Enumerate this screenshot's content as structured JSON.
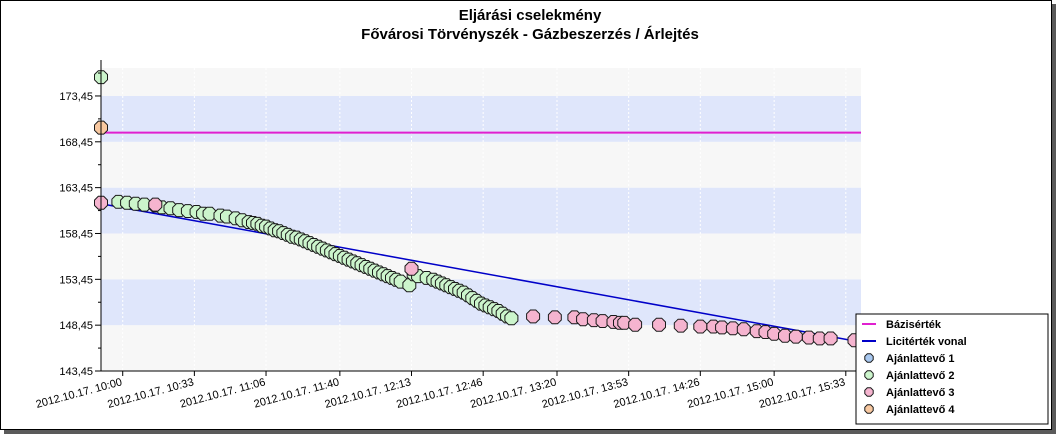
{
  "chart_data": {
    "type": "scatter",
    "title": "Eljárási cselekmény",
    "subtitle": "Fővárosi Törvényszék - Gázbeszerzés / Árlejtés",
    "xlabel": "",
    "ylabel": "",
    "y_ticks": [
      "143,45",
      "148,45",
      "153,45",
      "158,45",
      "163,45",
      "168,45",
      "173,45"
    ],
    "y_tick_values": [
      143.45,
      148.45,
      153.45,
      158.45,
      163.45,
      168.45,
      173.45
    ],
    "ylim": [
      143.45,
      176.5
    ],
    "x_ticks": [
      "2012.10.17. 10:00",
      "2012.10.17. 10:33",
      "2012.10.17. 11:06",
      "2012.10.17. 11:40",
      "2012.10.17. 12:13",
      "2012.10.17. 12:46",
      "2012.10.17. 13:20",
      "2012.10.17. 13:53",
      "2012.10.17. 14:26",
      "2012.10.17. 15:00",
      "2012.10.17. 15:33"
    ],
    "x_tick_minutes": [
      0,
      33,
      66,
      100,
      133,
      166,
      200,
      233,
      266,
      300,
      333
    ],
    "xlim_minutes": [
      -10,
      340
    ],
    "band_colors": [
      "#f7f7f7",
      "#dfe6fb"
    ],
    "grid": true,
    "legend_position": "bottom-right",
    "series": [
      {
        "name": "Bázisérték",
        "kind": "hline",
        "value": 169.45,
        "color": "#e020d0"
      },
      {
        "name": "Licitérték vonal",
        "kind": "line",
        "color": "#0000c8",
        "x": [
          -10,
          340
        ],
        "y": [
          161.7,
          146.6
        ]
      },
      {
        "name": "Ajánlattevő 1",
        "kind": "scatter",
        "color": "#a8c8f0",
        "x": [],
        "y": []
      },
      {
        "name": "Ajánlattevő 2",
        "kind": "scatter",
        "color": "#ccf5cc",
        "x": [
          -10,
          -2,
          2,
          6,
          10,
          15,
          18,
          22,
          26,
          30,
          34,
          37,
          40,
          45,
          48,
          52,
          55,
          58,
          60,
          62,
          64,
          66,
          68,
          70,
          72,
          74,
          76,
          78,
          80,
          82,
          84,
          86,
          88,
          90,
          92,
          94,
          96,
          98,
          100,
          102,
          104,
          106,
          108,
          110,
          112,
          114,
          116,
          118,
          120,
          122,
          124,
          126,
          128,
          132,
          134,
          136,
          140,
          143,
          145,
          147,
          149,
          151,
          153,
          155,
          157,
          159,
          161,
          163,
          165,
          167,
          169,
          171,
          173,
          175,
          177,
          179
        ],
        "y": [
          175.5,
          161.9,
          161.8,
          161.7,
          161.6,
          161.5,
          161.3,
          161.2,
          161.0,
          160.9,
          160.8,
          160.6,
          160.6,
          160.4,
          160.3,
          160.1,
          159.9,
          159.7,
          159.6,
          159.5,
          159.3,
          159.2,
          159.0,
          158.8,
          158.7,
          158.5,
          158.3,
          158.1,
          158.0,
          157.8,
          157.6,
          157.4,
          157.2,
          157.0,
          156.8,
          156.6,
          156.4,
          156.2,
          156.0,
          155.8,
          155.6,
          155.4,
          155.2,
          155.0,
          154.8,
          154.6,
          154.4,
          154.2,
          154.0,
          153.8,
          153.6,
          153.4,
          153.2,
          152.8,
          154.0,
          153.8,
          153.6,
          153.4,
          153.2,
          153.0,
          152.8,
          152.6,
          152.4,
          152.2,
          152.0,
          151.7,
          151.4,
          151.1,
          150.8,
          150.6,
          150.4,
          150.2,
          150.0,
          149.7,
          149.4,
          149.2
        ]
      },
      {
        "name": "Ajánlattevő 3",
        "kind": "scatter",
        "color": "#f5b4cf",
        "x": [
          -10,
          15,
          133,
          189,
          199,
          208,
          212,
          217,
          221,
          226,
          229,
          231,
          236,
          247,
          257,
          266,
          272,
          276,
          281,
          286,
          292,
          296,
          300,
          305,
          310,
          316,
          321,
          326,
          337,
          341,
          347,
          353
        ],
        "y": [
          161.8,
          161.6,
          154.6,
          149.4,
          149.3,
          149.3,
          149.1,
          149.0,
          148.9,
          148.8,
          148.7,
          148.7,
          148.5,
          148.5,
          148.4,
          148.3,
          148.3,
          148.2,
          148.1,
          148.0,
          147.8,
          147.7,
          147.5,
          147.3,
          147.2,
          147.1,
          147.0,
          147.0,
          146.8,
          146.7,
          146.6,
          146.6
        ]
      },
      {
        "name": "Ajánlattevő 4",
        "kind": "scatter",
        "color": "#f8c8a0",
        "x": [
          -10
        ],
        "y": [
          170.0
        ]
      }
    ]
  }
}
